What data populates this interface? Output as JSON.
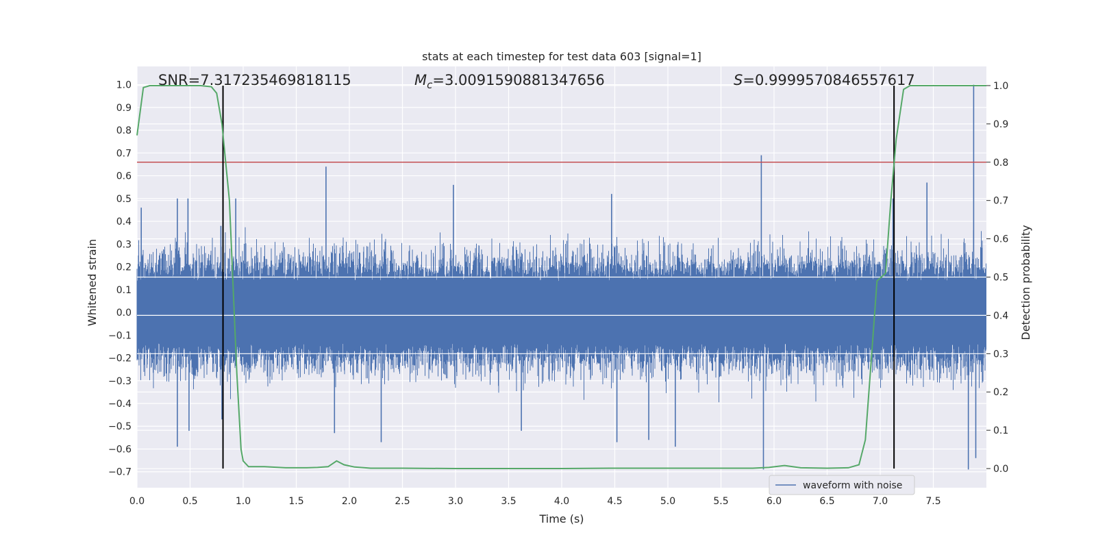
{
  "chart_data": {
    "type": "line",
    "title": "stats at each timestep for test data 603 [signal=1]",
    "xlabel": "Time (s)",
    "ylabel_left": "Whitened strain",
    "ylabel_right": "Detection probability",
    "xlim": [
      0.0,
      8.0
    ],
    "ylim_left": [
      -0.77,
      1.08
    ],
    "ylim_right": [
      -0.05,
      1.05
    ],
    "x_ticks": [
      0.0,
      0.5,
      1.0,
      1.5,
      2.0,
      2.5,
      3.0,
      3.5,
      4.0,
      4.5,
      5.0,
      5.5,
      6.0,
      6.5,
      7.0,
      7.5
    ],
    "x_tick_labels": [
      "0.0",
      "0.5",
      "1.0",
      "1.5",
      "2.0",
      "2.5",
      "3.0",
      "3.5",
      "4.0",
      "4.5",
      "5.0",
      "5.5",
      "6.0",
      "6.5",
      "7.0",
      "7.5"
    ],
    "y_left_ticks": [
      1.0,
      0.9,
      0.8,
      0.7,
      0.6,
      0.5,
      0.4,
      0.3,
      0.2,
      0.1,
      0.0,
      -0.1,
      -0.2,
      -0.3,
      -0.4,
      -0.5,
      -0.6,
      -0.7
    ],
    "y_left_tick_labels": [
      "1.0",
      "0.9",
      "0.8",
      "0.7",
      "0.6",
      "0.5",
      "0.4",
      "0.3",
      "0.2",
      "0.1",
      "0.0",
      "−0.1",
      "−0.2",
      "−0.3",
      "−0.4",
      "−0.5",
      "−0.6",
      "−0.7"
    ],
    "y_right_ticks": [
      1.0,
      0.9,
      0.8,
      0.7,
      0.6,
      0.5,
      0.4,
      0.3,
      0.2,
      0.1,
      0.0
    ],
    "y_right_tick_labels": [
      "1.0",
      "0.9",
      "0.8",
      "0.7",
      "0.6",
      "0.5",
      "0.4",
      "0.3",
      "0.2",
      "0.1",
      "0.0"
    ],
    "annotations": {
      "snr": "SNR=7.317235469818115",
      "mc_symbol": "M",
      "mc_sub": "c",
      "mc_value": "=3.0091590881347656",
      "s_symbol": "S",
      "s_value": "=0.9999570846557617"
    },
    "threshold_right": 0.8,
    "vertical_markers": [
      0.81,
      7.13
    ],
    "waveform": {
      "name": "waveform with noise",
      "color": "#4c72b0",
      "noise_envelope": 0.3,
      "spikes": [
        {
          "x": 0.04,
          "y": 0.46
        },
        {
          "x": 0.38,
          "y": 0.5
        },
        {
          "x": 0.38,
          "y": -0.59
        },
        {
          "x": 0.48,
          "y": 0.5
        },
        {
          "x": 0.49,
          "y": -0.52
        },
        {
          "x": 0.79,
          "y": 0.38
        },
        {
          "x": 0.8,
          "y": -0.47
        },
        {
          "x": 0.93,
          "y": 0.5
        },
        {
          "x": 1.78,
          "y": 0.64
        },
        {
          "x": 1.86,
          "y": -0.53
        },
        {
          "x": 2.3,
          "y": -0.57
        },
        {
          "x": 2.98,
          "y": 0.56
        },
        {
          "x": 3.62,
          "y": -0.52
        },
        {
          "x": 4.47,
          "y": 0.52
        },
        {
          "x": 4.52,
          "y": -0.57
        },
        {
          "x": 4.82,
          "y": -0.56
        },
        {
          "x": 5.07,
          "y": -0.59
        },
        {
          "x": 5.88,
          "y": 0.69
        },
        {
          "x": 5.9,
          "y": -0.69
        },
        {
          "x": 7.12,
          "y": 0.5
        },
        {
          "x": 7.44,
          "y": 0.57
        },
        {
          "x": 7.83,
          "y": -0.69
        },
        {
          "x": 7.88,
          "y": 1.0
        },
        {
          "x": 7.9,
          "y": -0.64
        }
      ]
    },
    "probability": {
      "color": "#55a868",
      "x": [
        0.0,
        0.06,
        0.12,
        0.2,
        0.3,
        0.4,
        0.5,
        0.6,
        0.7,
        0.75,
        0.8,
        0.87,
        0.94,
        0.98,
        1.0,
        1.05,
        1.2,
        1.4,
        1.6,
        1.7,
        1.8,
        1.88,
        1.95,
        2.05,
        2.2,
        2.5,
        3.0,
        3.5,
        4.0,
        4.5,
        5.0,
        5.5,
        5.8,
        5.95,
        6.1,
        6.25,
        6.5,
        6.7,
        6.8,
        6.86,
        6.92,
        6.97,
        7.05,
        7.1,
        7.15,
        7.22,
        7.28,
        7.35,
        7.5,
        7.7,
        8.0
      ],
      "y": [
        0.87,
        0.995,
        1.0,
        1.0,
        1.0,
        1.0,
        1.0,
        1.0,
        0.997,
        0.98,
        0.9,
        0.7,
        0.25,
        0.05,
        0.02,
        0.005,
        0.005,
        0.002,
        0.002,
        0.003,
        0.005,
        0.02,
        0.01,
        0.004,
        0.001,
        0.001,
        0.0,
        0.0,
        0.0,
        0.001,
        0.001,
        0.001,
        0.001,
        0.003,
        0.008,
        0.002,
        0.001,
        0.002,
        0.01,
        0.075,
        0.3,
        0.49,
        0.51,
        0.7,
        0.86,
        0.99,
        1.0,
        1.0,
        1.0,
        1.0,
        1.0
      ]
    },
    "legend": {
      "label": "waveform with noise",
      "placement": "lower-right"
    },
    "grid": true
  }
}
